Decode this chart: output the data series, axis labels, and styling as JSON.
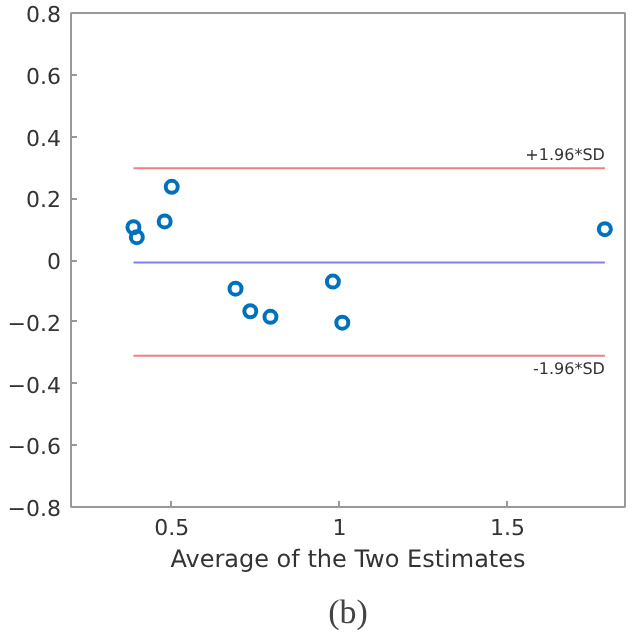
{
  "chart_data": {
    "type": "scatter",
    "xlabel": "Average of the Two Estimates",
    "x": [
      0.386,
      0.396,
      0.479,
      0.5,
      0.69,
      0.734,
      0.794,
      0.98,
      1.008,
      1.79
    ],
    "series": [
      {
        "color": "#0072bd",
        "values": [
          0.106,
          0.074,
          0.125,
          0.237,
          -0.093,
          -0.166,
          -0.184,
          -0.07,
          -0.203,
          0.1
        ]
      }
    ],
    "marker": "circle",
    "grid": false,
    "xlim": [
      0.2,
      1.85
    ],
    "xticks": [
      0.5,
      1,
      1.5
    ],
    "ylim": [
      -0.8,
      0.8
    ],
    "yticks": [
      -0.8,
      -0.6,
      -0.4,
      -0.2,
      0,
      0.2,
      0.4,
      0.6,
      0.8
    ],
    "ref_lines": [
      {
        "axis": "y",
        "value": 0.297,
        "label": "+1.96*SD",
        "color": "#f08080"
      },
      {
        "axis": "y",
        "value": -0.008,
        "color": "#8080f0"
      },
      {
        "axis": "y",
        "value": -0.31,
        "label": "-1.96*SD",
        "color": "#f08080"
      }
    ],
    "annotations": [
      "(b)"
    ]
  }
}
